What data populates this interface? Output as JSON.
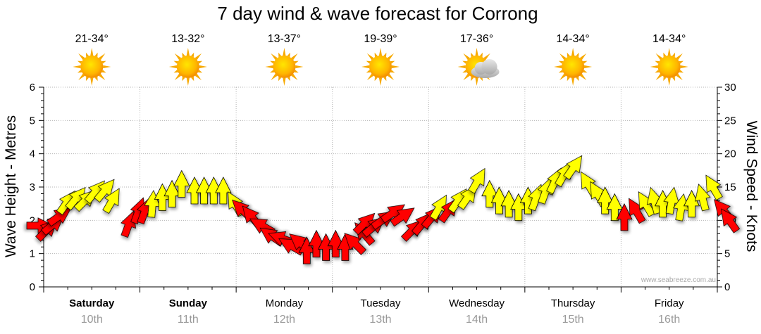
{
  "chart_data": {
    "type": "line",
    "title": "7 day wind & wave forecast for Corrong",
    "left_axis": {
      "label": "Wave Height - Metres",
      "min": 0,
      "max": 6,
      "ticks": [
        "0",
        "1",
        "2",
        "3",
        "4",
        "5",
        "6"
      ]
    },
    "right_axis": {
      "label": "Wind Speed - Knots",
      "min": 0,
      "max": 30,
      "ticks": [
        "0",
        "5",
        "10",
        "15",
        "20",
        "25",
        "30"
      ]
    },
    "days": [
      {
        "day": "Saturday",
        "date": "10th",
        "bold": true,
        "temp": "21-34°",
        "icon": "sun-icon"
      },
      {
        "day": "Sunday",
        "date": "11th",
        "bold": true,
        "temp": "13-32°",
        "icon": "sun-icon"
      },
      {
        "day": "Monday",
        "date": "12th",
        "bold": false,
        "temp": "13-37°",
        "icon": "sun-icon"
      },
      {
        "day": "Tuesday",
        "date": "13th",
        "bold": false,
        "temp": "19-39°",
        "icon": "sun-icon"
      },
      {
        "day": "Wednesday",
        "date": "14th",
        "bold": false,
        "temp": "17-36°",
        "icon": "partly-cloudy-icon"
      },
      {
        "day": "Thursday",
        "date": "15th",
        "bold": false,
        "temp": "14-34°",
        "icon": "sun-icon"
      },
      {
        "day": "Friday",
        "date": "16th",
        "bold": false,
        "temp": "14-34°",
        "icon": "sun-icon"
      }
    ],
    "wind_series": {
      "name": "Wind Speed (knots)",
      "points": [
        {
          "t": 0.0,
          "v": 9.2,
          "dir": 90
        },
        {
          "t": 0.1,
          "v": 9.0,
          "dir": 45
        },
        {
          "t": 0.2,
          "v": 9.8,
          "dir": 50
        },
        {
          "t": 0.3,
          "v": 11.0,
          "dir": 55
        },
        {
          "t": 0.4,
          "v": 13.2,
          "dir": 35
        },
        {
          "t": 0.55,
          "v": 13.8,
          "dir": 40
        },
        {
          "t": 0.7,
          "v": 13.5,
          "dir": 45
        },
        {
          "t": 0.85,
          "v": 14.8,
          "dir": 40
        },
        {
          "t": 1.0,
          "v": 15.0,
          "dir": 40
        },
        {
          "t": 1.1,
          "v": 13.5,
          "dir": 30
        },
        {
          "t": 1.35,
          "v": 10.0,
          "dir": 20
        },
        {
          "t": 1.5,
          "v": 12.0,
          "dir": 20
        },
        {
          "t": 1.6,
          "v": 12.0,
          "dir": 20
        },
        {
          "t": 1.7,
          "v": 13.0,
          "dir": 5
        },
        {
          "t": 1.85,
          "v": 14.0,
          "dir": 0
        },
        {
          "t": 2.0,
          "v": 14.5,
          "dir": 0
        },
        {
          "t": 2.15,
          "v": 16.0,
          "dir": 0
        },
        {
          "t": 2.35,
          "v": 15.0,
          "dir": 0
        },
        {
          "t": 2.5,
          "v": 15.0,
          "dir": 0
        },
        {
          "t": 2.65,
          "v": 15.0,
          "dir": 0
        },
        {
          "t": 2.8,
          "v": 15.0,
          "dir": 0
        },
        {
          "t": 2.95,
          "v": 13.0,
          "dir": 330
        },
        {
          "t": 3.05,
          "v": 12.0,
          "dir": 315
        },
        {
          "t": 3.2,
          "v": 11.0,
          "dir": 320
        },
        {
          "t": 3.35,
          "v": 9.5,
          "dir": 300
        },
        {
          "t": 3.5,
          "v": 8.0,
          "dir": 305
        },
        {
          "t": 3.65,
          "v": 7.5,
          "dir": 290
        },
        {
          "t": 3.8,
          "v": 6.5,
          "dir": 300
        },
        {
          "t": 3.95,
          "v": 7.0,
          "dir": 310
        },
        {
          "t": 4.1,
          "v": 6.0,
          "dir": 0
        },
        {
          "t": 4.25,
          "v": 7.0,
          "dir": 0
        },
        {
          "t": 4.4,
          "v": 6.5,
          "dir": 0
        },
        {
          "t": 4.55,
          "v": 7.0,
          "dir": 0
        },
        {
          "t": 4.7,
          "v": 6.5,
          "dir": 0
        },
        {
          "t": 4.8,
          "v": 7.0,
          "dir": 315
        },
        {
          "t": 4.95,
          "v": 8.5,
          "dir": 320
        },
        {
          "t": 5.05,
          "v": 10.0,
          "dir": 45
        },
        {
          "t": 5.2,
          "v": 9.5,
          "dir": 50
        },
        {
          "t": 5.35,
          "v": 10.5,
          "dir": 55
        },
        {
          "t": 5.5,
          "v": 11.5,
          "dir": 55
        },
        {
          "t": 5.65,
          "v": 11.0,
          "dir": 55
        },
        {
          "t": 5.8,
          "v": 9.0,
          "dir": 45
        },
        {
          "t": 5.95,
          "v": 10.0,
          "dir": 40
        },
        {
          "t": 6.1,
          "v": 11.0,
          "dir": 40
        },
        {
          "t": 6.2,
          "v": 12.5,
          "dir": 30
        },
        {
          "t": 6.35,
          "v": 12.0,
          "dir": 35
        },
        {
          "t": 6.5,
          "v": 13.5,
          "dir": 35
        },
        {
          "t": 6.65,
          "v": 14.0,
          "dir": 35
        },
        {
          "t": 6.8,
          "v": 16.5,
          "dir": 30
        },
        {
          "t": 6.95,
          "v": 14.5,
          "dir": 0
        },
        {
          "t": 7.1,
          "v": 13.5,
          "dir": 0
        },
        {
          "t": 7.25,
          "v": 13.0,
          "dir": 0
        },
        {
          "t": 7.4,
          "v": 12.5,
          "dir": 0
        },
        {
          "t": 7.55,
          "v": 13.5,
          "dir": 0
        },
        {
          "t": 7.7,
          "v": 14.0,
          "dir": 20
        },
        {
          "t": 7.85,
          "v": 15.0,
          "dir": 20
        },
        {
          "t": 8.0,
          "v": 16.5,
          "dir": 25
        },
        {
          "t": 8.15,
          "v": 17.5,
          "dir": 30
        },
        {
          "t": 8.3,
          "v": 18.5,
          "dir": 35
        },
        {
          "t": 8.45,
          "v": 16.0,
          "dir": 330
        },
        {
          "t": 8.6,
          "v": 14.5,
          "dir": 330
        },
        {
          "t": 8.75,
          "v": 13.5,
          "dir": 0
        },
        {
          "t": 8.9,
          "v": 12.5,
          "dir": 0
        },
        {
          "t": 9.05,
          "v": 11.0,
          "dir": 0
        },
        {
          "t": 9.2,
          "v": 12.0,
          "dir": 330
        },
        {
          "t": 9.35,
          "v": 13.0,
          "dir": 330
        },
        {
          "t": 9.5,
          "v": 13.5,
          "dir": 345
        },
        {
          "t": 9.65,
          "v": 13.0,
          "dir": 0
        },
        {
          "t": 9.8,
          "v": 13.5,
          "dir": 10
        },
        {
          "t": 9.95,
          "v": 12.5,
          "dir": 10
        },
        {
          "t": 10.1,
          "v": 13.0,
          "dir": 0
        },
        {
          "t": 10.25,
          "v": 14.0,
          "dir": 345
        },
        {
          "t": 10.4,
          "v": 15.5,
          "dir": 330
        },
        {
          "t": 10.55,
          "v": 12.0,
          "dir": 320
        },
        {
          "t": 10.65,
          "v": 10.5,
          "dir": 325
        }
      ]
    },
    "color_bands": [
      {
        "max_knots": 12,
        "color": "#ff0000"
      },
      {
        "max_knots": 19,
        "color": "#ffff00"
      },
      {
        "max_knots": 30,
        "color": "#00ee00"
      }
    ],
    "grid": true
  },
  "watermark": "www.seabreeze.com.au"
}
